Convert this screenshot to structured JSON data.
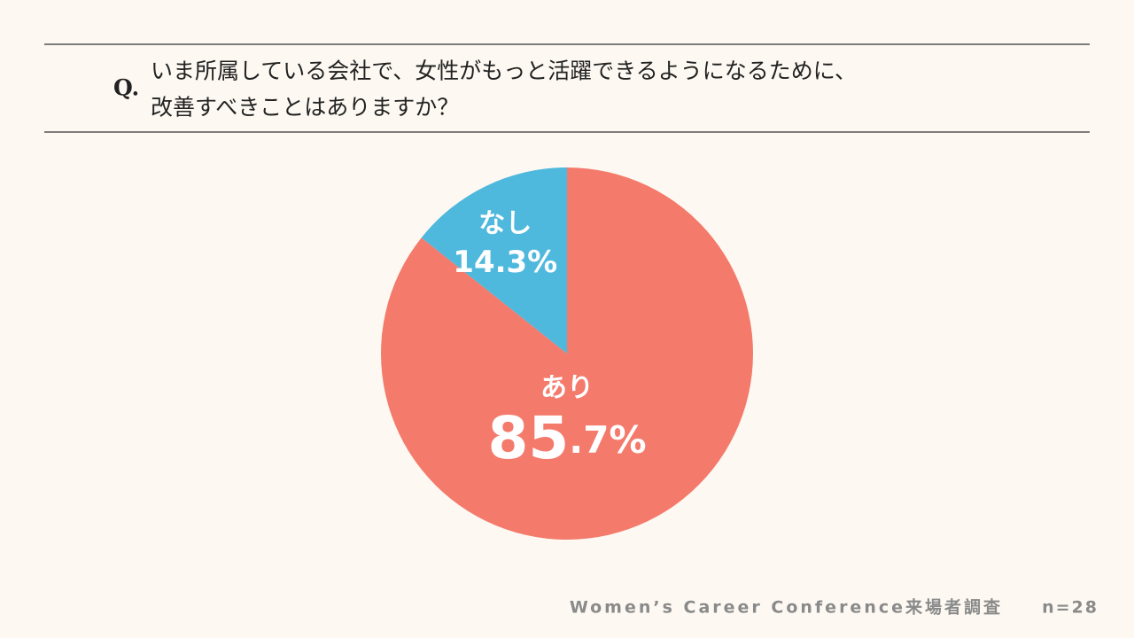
{
  "chart_data": {
    "type": "pie",
    "question_prefix": "Q.",
    "question_lines": [
      "いま所属している会社で、女性がもっと活躍できるようになるために、",
      "改善すべきことはありますか？"
    ],
    "categories": [
      "あり",
      "なし"
    ],
    "values": [
      85.7,
      14.3
    ],
    "value_labels": [
      "85.7%",
      "14.3%"
    ],
    "colors": [
      "#f47a6b",
      "#4fb8dd"
    ],
    "source": "Women’s Career Conference来場者調査",
    "sample_size": "n=28"
  }
}
